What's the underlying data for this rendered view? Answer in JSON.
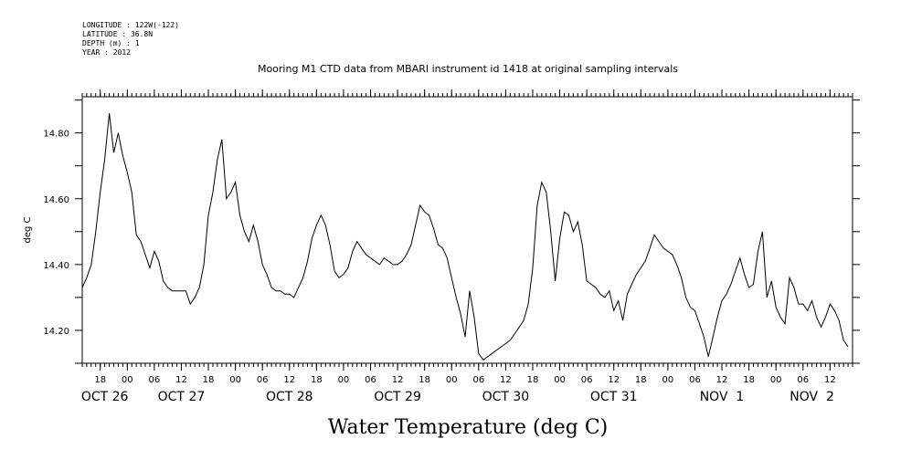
{
  "meta": {
    "lines": [
      "LONGITUDE : 122W(-122)",
      "LATITUDE : 36.8N",
      "DEPTH (m) : 1",
      "YEAR : 2012"
    ]
  },
  "chart_data": {
    "type": "line",
    "title": "Mooring M1 CTD data from MBARI instrument id 1418 at original sampling intervals",
    "xlabel": "Water Temperature (deg C)",
    "ylabel": "deg C",
    "xlim": [
      "2012-10-26T14:00",
      "2012-11-02T17:00"
    ],
    "ylim": [
      14.1,
      14.91
    ],
    "yticks": [
      14.2,
      14.4,
      14.6,
      14.8
    ],
    "ytick_labels": [
      "14.20",
      "14.40",
      "14.60",
      "14.80"
    ],
    "hour_ticks": [
      {
        "t": "2012-10-26T18:00",
        "label": "18"
      },
      {
        "t": "2012-10-27T00:00",
        "label": "00"
      },
      {
        "t": "2012-10-27T06:00",
        "label": "06"
      },
      {
        "t": "2012-10-27T12:00",
        "label": "12"
      },
      {
        "t": "2012-10-27T18:00",
        "label": "18"
      },
      {
        "t": "2012-10-28T00:00",
        "label": "00"
      },
      {
        "t": "2012-10-28T06:00",
        "label": "06"
      },
      {
        "t": "2012-10-28T12:00",
        "label": "12"
      },
      {
        "t": "2012-10-28T18:00",
        "label": "18"
      },
      {
        "t": "2012-10-29T00:00",
        "label": "00"
      },
      {
        "t": "2012-10-29T06:00",
        "label": "06"
      },
      {
        "t": "2012-10-29T12:00",
        "label": "12"
      },
      {
        "t": "2012-10-29T18:00",
        "label": "18"
      },
      {
        "t": "2012-10-30T00:00",
        "label": "00"
      },
      {
        "t": "2012-10-30T06:00",
        "label": "06"
      },
      {
        "t": "2012-10-30T12:00",
        "label": "12"
      },
      {
        "t": "2012-10-30T18:00",
        "label": "18"
      },
      {
        "t": "2012-10-31T00:00",
        "label": "00"
      },
      {
        "t": "2012-10-31T06:00",
        "label": "06"
      },
      {
        "t": "2012-10-31T12:00",
        "label": "12"
      },
      {
        "t": "2012-10-31T18:00",
        "label": "18"
      },
      {
        "t": "2012-11-01T00:00",
        "label": "00"
      },
      {
        "t": "2012-11-01T06:00",
        "label": "06"
      },
      {
        "t": "2012-11-01T12:00",
        "label": "12"
      },
      {
        "t": "2012-11-01T18:00",
        "label": "18"
      },
      {
        "t": "2012-11-02T00:00",
        "label": "00"
      },
      {
        "t": "2012-11-02T06:00",
        "label": "06"
      },
      {
        "t": "2012-11-02T12:00",
        "label": "12"
      }
    ],
    "day_labels": [
      {
        "t": "2012-10-26T19:00",
        "label": "OCT 26"
      },
      {
        "t": "2012-10-27T12:00",
        "label": "OCT 27"
      },
      {
        "t": "2012-10-28T12:00",
        "label": "OCT 28"
      },
      {
        "t": "2012-10-29T12:00",
        "label": "OCT 29"
      },
      {
        "t": "2012-10-30T12:00",
        "label": "OCT 30"
      },
      {
        "t": "2012-10-31T12:00",
        "label": "OCT 31"
      },
      {
        "t": "2012-11-01T12:00",
        "label": "NOV  1"
      },
      {
        "t": "2012-11-02T08:00",
        "label": "NOV  2"
      }
    ],
    "series": [
      {
        "color": "#000000",
        "x": [
          "2012-10-26T14:00",
          "2012-10-26T15:00",
          "2012-10-26T16:00",
          "2012-10-26T17:00",
          "2012-10-26T18:00",
          "2012-10-26T19:00",
          "2012-10-26T20:00",
          "2012-10-26T21:00",
          "2012-10-26T22:00",
          "2012-10-26T23:00",
          "2012-10-27T00:00",
          "2012-10-27T01:00",
          "2012-10-27T02:00",
          "2012-10-27T03:00",
          "2012-10-27T04:00",
          "2012-10-27T05:00",
          "2012-10-27T06:00",
          "2012-10-27T07:00",
          "2012-10-27T08:00",
          "2012-10-27T09:00",
          "2012-10-27T10:00",
          "2012-10-27T11:00",
          "2012-10-27T12:00",
          "2012-10-27T13:00",
          "2012-10-27T14:00",
          "2012-10-27T15:00",
          "2012-10-27T16:00",
          "2012-10-27T17:00",
          "2012-10-27T18:00",
          "2012-10-27T19:00",
          "2012-10-27T20:00",
          "2012-10-27T21:00",
          "2012-10-27T22:00",
          "2012-10-27T23:00",
          "2012-10-28T00:00",
          "2012-10-28T01:00",
          "2012-10-28T02:00",
          "2012-10-28T03:00",
          "2012-10-28T04:00",
          "2012-10-28T05:00",
          "2012-10-28T06:00",
          "2012-10-28T07:00",
          "2012-10-28T08:00",
          "2012-10-28T09:00",
          "2012-10-28T10:00",
          "2012-10-28T11:00",
          "2012-10-28T12:00",
          "2012-10-28T13:00",
          "2012-10-28T14:00",
          "2012-10-28T15:00",
          "2012-10-28T16:00",
          "2012-10-28T17:00",
          "2012-10-28T18:00",
          "2012-10-28T19:00",
          "2012-10-28T20:00",
          "2012-10-28T21:00",
          "2012-10-28T22:00",
          "2012-10-28T23:00",
          "2012-10-29T00:00",
          "2012-10-29T01:00",
          "2012-10-29T02:00",
          "2012-10-29T03:00",
          "2012-10-29T04:00",
          "2012-10-29T05:00",
          "2012-10-29T06:00",
          "2012-10-29T07:00",
          "2012-10-29T08:00",
          "2012-10-29T09:00",
          "2012-10-29T10:00",
          "2012-10-29T11:00",
          "2012-10-29T12:00",
          "2012-10-29T13:00",
          "2012-10-29T14:00",
          "2012-10-29T15:00",
          "2012-10-29T16:00",
          "2012-10-29T17:00",
          "2012-10-29T18:00",
          "2012-10-29T19:00",
          "2012-10-29T20:00",
          "2012-10-29T21:00",
          "2012-10-29T22:00",
          "2012-10-29T23:00",
          "2012-10-30T00:00",
          "2012-10-30T01:00",
          "2012-10-30T02:00",
          "2012-10-30T03:00",
          "2012-10-30T04:00",
          "2012-10-30T05:00",
          "2012-10-30T06:00",
          "2012-10-30T07:00",
          "2012-10-30T08:00",
          "2012-10-30T09:00",
          "2012-10-30T10:00",
          "2012-10-30T11:00",
          "2012-10-30T12:00",
          "2012-10-30T13:00",
          "2012-10-30T14:00",
          "2012-10-30T15:00",
          "2012-10-30T16:00",
          "2012-10-30T17:00",
          "2012-10-30T18:00",
          "2012-10-30T19:00",
          "2012-10-30T20:00",
          "2012-10-30T21:00",
          "2012-10-30T22:00",
          "2012-10-30T23:00",
          "2012-10-31T00:00",
          "2012-10-31T01:00",
          "2012-10-31T02:00",
          "2012-10-31T03:00",
          "2012-10-31T04:00",
          "2012-10-31T05:00",
          "2012-10-31T06:00",
          "2012-10-31T07:00",
          "2012-10-31T08:00",
          "2012-10-31T09:00",
          "2012-10-31T10:00",
          "2012-10-31T11:00",
          "2012-10-31T12:00",
          "2012-10-31T13:00",
          "2012-10-31T14:00",
          "2012-10-31T15:00",
          "2012-10-31T16:00",
          "2012-10-31T17:00",
          "2012-10-31T18:00",
          "2012-10-31T19:00",
          "2012-10-31T20:00",
          "2012-10-31T21:00",
          "2012-10-31T22:00",
          "2012-10-31T23:00",
          "2012-11-01T00:00",
          "2012-11-01T01:00",
          "2012-11-01T02:00",
          "2012-11-01T03:00",
          "2012-11-01T04:00",
          "2012-11-01T05:00",
          "2012-11-01T06:00",
          "2012-11-01T07:00",
          "2012-11-01T08:00",
          "2012-11-01T09:00",
          "2012-11-01T10:00",
          "2012-11-01T11:00",
          "2012-11-01T12:00",
          "2012-11-01T13:00",
          "2012-11-01T14:00",
          "2012-11-01T15:00",
          "2012-11-01T16:00",
          "2012-11-01T17:00",
          "2012-11-01T18:00",
          "2012-11-01T19:00",
          "2012-11-01T20:00",
          "2012-11-01T21:00",
          "2012-11-01T22:00",
          "2012-11-01T23:00",
          "2012-11-02T00:00",
          "2012-11-02T01:00",
          "2012-11-02T02:00",
          "2012-11-02T03:00",
          "2012-11-02T04:00",
          "2012-11-02T05:00",
          "2012-11-02T06:00",
          "2012-11-02T07:00",
          "2012-11-02T08:00",
          "2012-11-02T09:00",
          "2012-11-02T10:00",
          "2012-11-02T11:00",
          "2012-11-02T12:00",
          "2012-11-02T13:00",
          "2012-11-02T14:00",
          "2012-11-02T15:00",
          "2012-11-02T16:00"
        ],
        "y": [
          14.33,
          14.36,
          14.4,
          14.5,
          14.62,
          14.72,
          14.86,
          14.74,
          14.8,
          14.73,
          14.68,
          14.62,
          14.49,
          14.47,
          14.43,
          14.39,
          14.44,
          14.41,
          14.35,
          14.33,
          14.32,
          14.32,
          14.32,
          14.32,
          14.28,
          14.3,
          14.33,
          14.4,
          14.55,
          14.62,
          14.72,
          14.78,
          14.6,
          14.62,
          14.65,
          14.55,
          14.5,
          14.47,
          14.52,
          14.47,
          14.4,
          14.37,
          14.33,
          14.32,
          14.32,
          14.31,
          14.31,
          14.3,
          14.33,
          14.36,
          14.41,
          14.48,
          14.52,
          14.55,
          14.52,
          14.46,
          14.38,
          14.36,
          14.37,
          14.39,
          14.44,
          14.47,
          14.45,
          14.43,
          14.42,
          14.41,
          14.4,
          14.42,
          14.41,
          14.4,
          14.4,
          14.41,
          14.43,
          14.46,
          14.52,
          14.58,
          14.56,
          14.55,
          14.51,
          14.46,
          14.45,
          14.42,
          14.36,
          14.3,
          14.25,
          14.18,
          14.32,
          14.24,
          14.13,
          14.11,
          14.12,
          14.13,
          14.14,
          14.15,
          14.16,
          14.17,
          14.19,
          14.21,
          14.23,
          14.28,
          14.39,
          14.58,
          14.65,
          14.62,
          14.5,
          14.35,
          14.48,
          14.56,
          14.55,
          14.5,
          14.53,
          14.46,
          14.35,
          14.34,
          14.33,
          14.31,
          14.3,
          14.32,
          14.26,
          14.29,
          14.23,
          14.31,
          14.34,
          14.37,
          14.39,
          14.41,
          14.45,
          14.49,
          14.47,
          14.45,
          14.44,
          14.43,
          14.4,
          14.36,
          14.3,
          14.27,
          14.26,
          14.22,
          14.18,
          14.12,
          14.18,
          14.24,
          14.29,
          14.31,
          14.34,
          14.38,
          14.42,
          14.37,
          14.33,
          14.34,
          14.44,
          14.5,
          14.3,
          14.35,
          14.27,
          14.24,
          14.22,
          14.36,
          14.33,
          14.28,
          14.28,
          14.26,
          14.29,
          14.24,
          14.21,
          14.24,
          14.28,
          14.26,
          14.23,
          14.17,
          14.15
        ]
      }
    ]
  }
}
